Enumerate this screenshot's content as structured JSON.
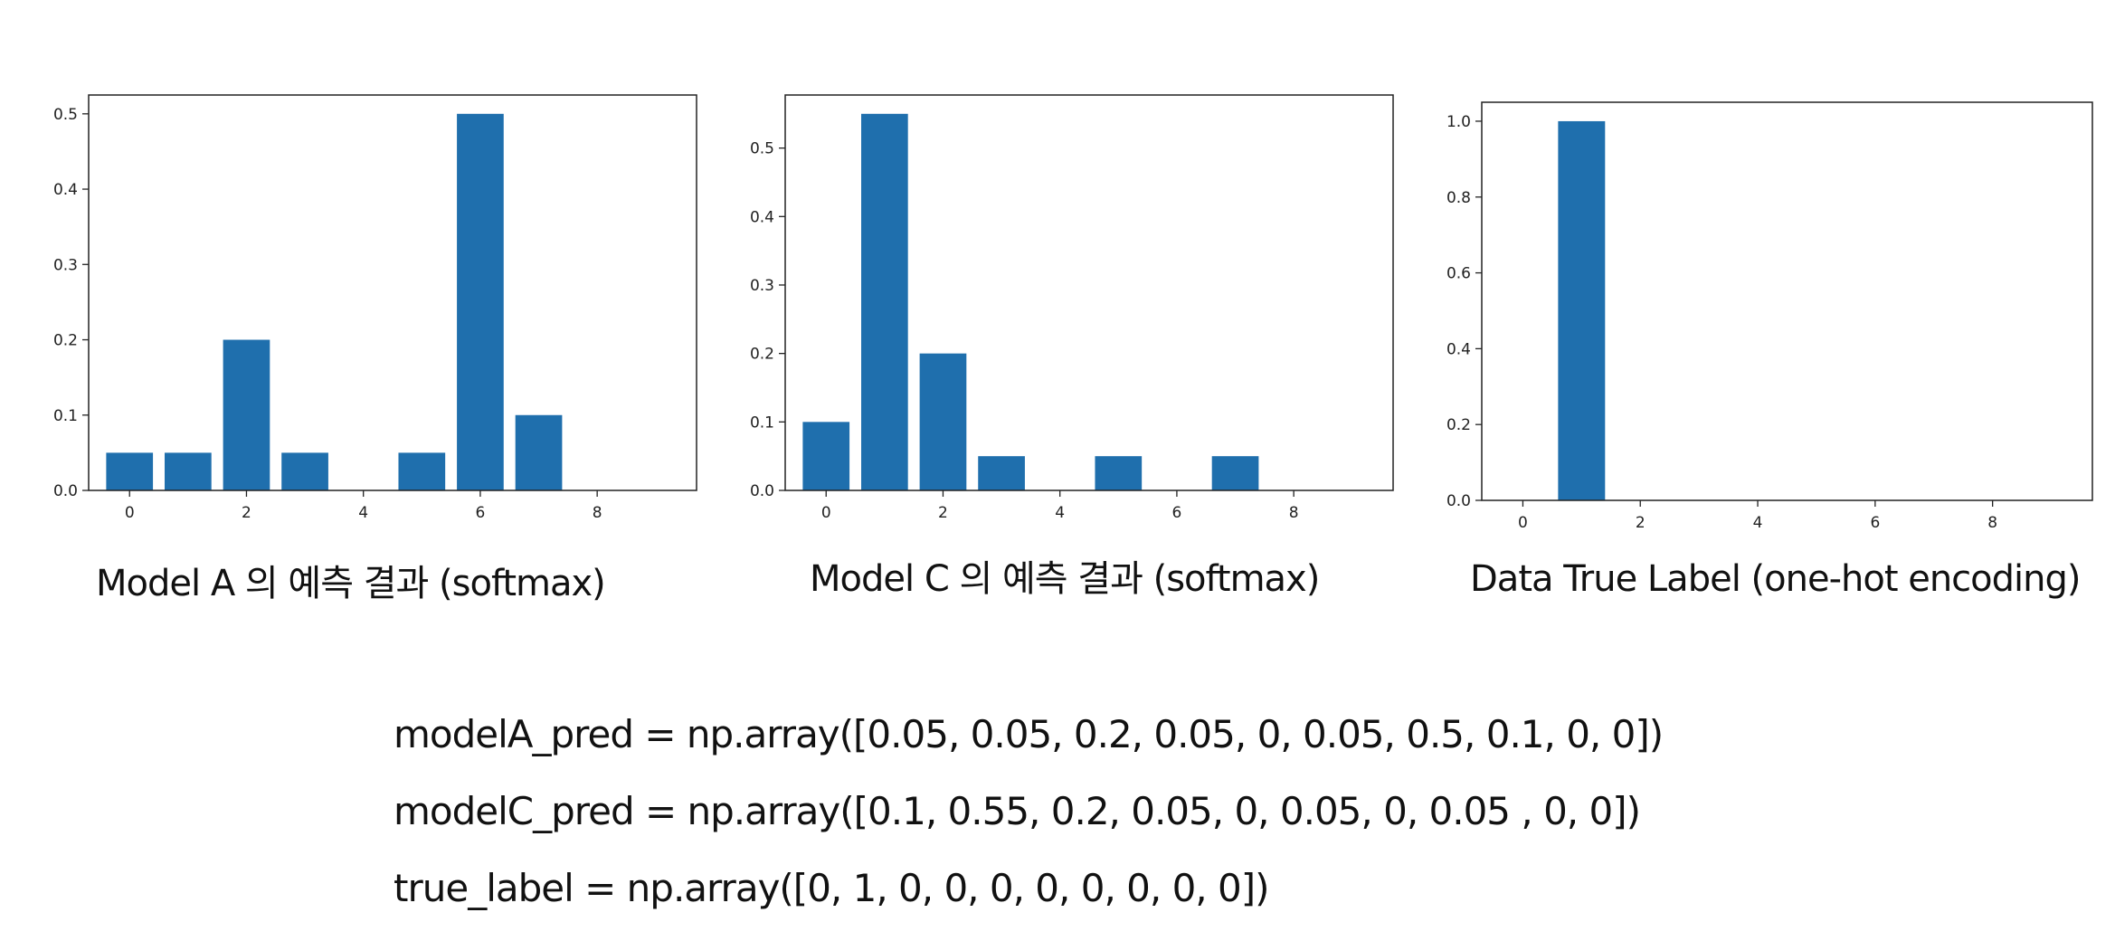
{
  "chart_data": [
    {
      "type": "bar",
      "x": [
        0,
        1,
        2,
        3,
        4,
        5,
        6,
        7,
        8,
        9
      ],
      "values": [
        0.05,
        0.05,
        0.2,
        0.05,
        0,
        0.05,
        0.5,
        0.1,
        0,
        0
      ],
      "xlim": [
        -0.7,
        9.7
      ],
      "ylim": [
        0,
        0.525
      ],
      "xticks": [
        "0",
        "2",
        "4",
        "6",
        "8"
      ],
      "yticks": [
        "0.0",
        "0.1",
        "0.2",
        "0.3",
        "0.4",
        "0.5"
      ],
      "color": "#1f6fad",
      "title": "",
      "xlabel": "",
      "ylabel": "",
      "caption": "Model A 의 예측 결과 (softmax)"
    },
    {
      "type": "bar",
      "x": [
        0,
        1,
        2,
        3,
        4,
        5,
        6,
        7,
        8,
        9
      ],
      "values": [
        0.1,
        0.55,
        0.2,
        0.05,
        0,
        0.05,
        0,
        0.05,
        0,
        0
      ],
      "xlim": [
        -0.7,
        9.7
      ],
      "ylim": [
        0,
        0.5775
      ],
      "xticks": [
        "0",
        "2",
        "4",
        "6",
        "8"
      ],
      "yticks": [
        "0.0",
        "0.1",
        "0.2",
        "0.3",
        "0.4",
        "0.5"
      ],
      "color": "#1f6fad",
      "title": "",
      "xlabel": "",
      "ylabel": "",
      "caption": "Model C 의 예측 결과 (softmax)"
    },
    {
      "type": "bar",
      "x": [
        0,
        1,
        2,
        3,
        4,
        5,
        6,
        7,
        8,
        9
      ],
      "values": [
        0,
        1,
        0,
        0,
        0,
        0,
        0,
        0,
        0,
        0
      ],
      "xlim": [
        -0.7,
        9.7
      ],
      "ylim": [
        0,
        1.05
      ],
      "xticks": [
        "0",
        "2",
        "4",
        "6",
        "8"
      ],
      "yticks": [
        "0.0",
        "0.2",
        "0.4",
        "0.6",
        "0.8",
        "1.0"
      ],
      "color": "#1f6fad",
      "title": "",
      "xlabel": "",
      "ylabel": "",
      "caption": "Data True Label (one-hot encoding)"
    }
  ],
  "code_lines": [
    "modelA_pred = np.array([0.05, 0.05, 0.2, 0.05, 0, 0.05, 0.5, 0.1, 0, 0])",
    "modelC_pred = np.array([0.1, 0.55, 0.2, 0.05, 0, 0.05, 0, 0.05 , 0, 0])",
    "true_label = np.array([0, 1, 0, 0, 0, 0, 0, 0, 0, 0])"
  ]
}
